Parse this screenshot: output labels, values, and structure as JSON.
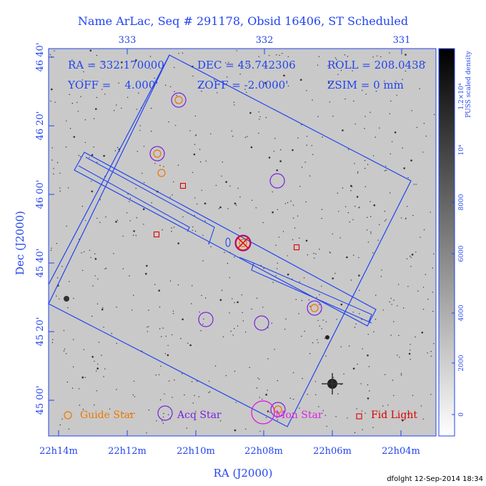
{
  "title": "Name ArLac, Seq # 291178, Obsid 16406, ST Scheduled",
  "info": {
    "line1": [
      "RA = 332.170000",
      "DEC = 45.742306",
      "ROLL = 208.0438"
    ],
    "line2": [
      "YOFF =    4.000'",
      "ZOFF = -2.0000'",
      "ZSIM = 0 mm"
    ]
  },
  "axes": {
    "top_ticks": [
      "333",
      "332",
      "331"
    ],
    "bottom_ticks": [
      "22h14m",
      "22h12m",
      "22h10m",
      "22h08m",
      "22h06m",
      "22h04m"
    ],
    "left_ticks": [
      "46 40'",
      "46 20'",
      "46 00'",
      "45 40'",
      "45 20'",
      "45 00'"
    ],
    "xlabel": "RA (J2000)",
    "ylabel": "Dec (J2000)"
  },
  "colorbar": {
    "label_line1": "1.2×10⁴",
    "label_line2": "PUSS scaled density",
    "ticks": [
      "10⁴",
      "8000",
      "6000",
      "4000",
      "2000",
      "0"
    ]
  },
  "legend": {
    "guide": "Guide Star",
    "acq": "Acq Star",
    "mon": "Mon Star",
    "fid": "Fid Light"
  },
  "colors": {
    "axis_blue": "#2244ee",
    "guide_orange": "#ee7700",
    "acq_purple": "#7722dd",
    "mon_magenta": "#dd22dd",
    "fid_red": "#dd0000",
    "target_red": "#ee0000"
  },
  "credit": "dfolght 12-Sep-2014 18:34"
}
